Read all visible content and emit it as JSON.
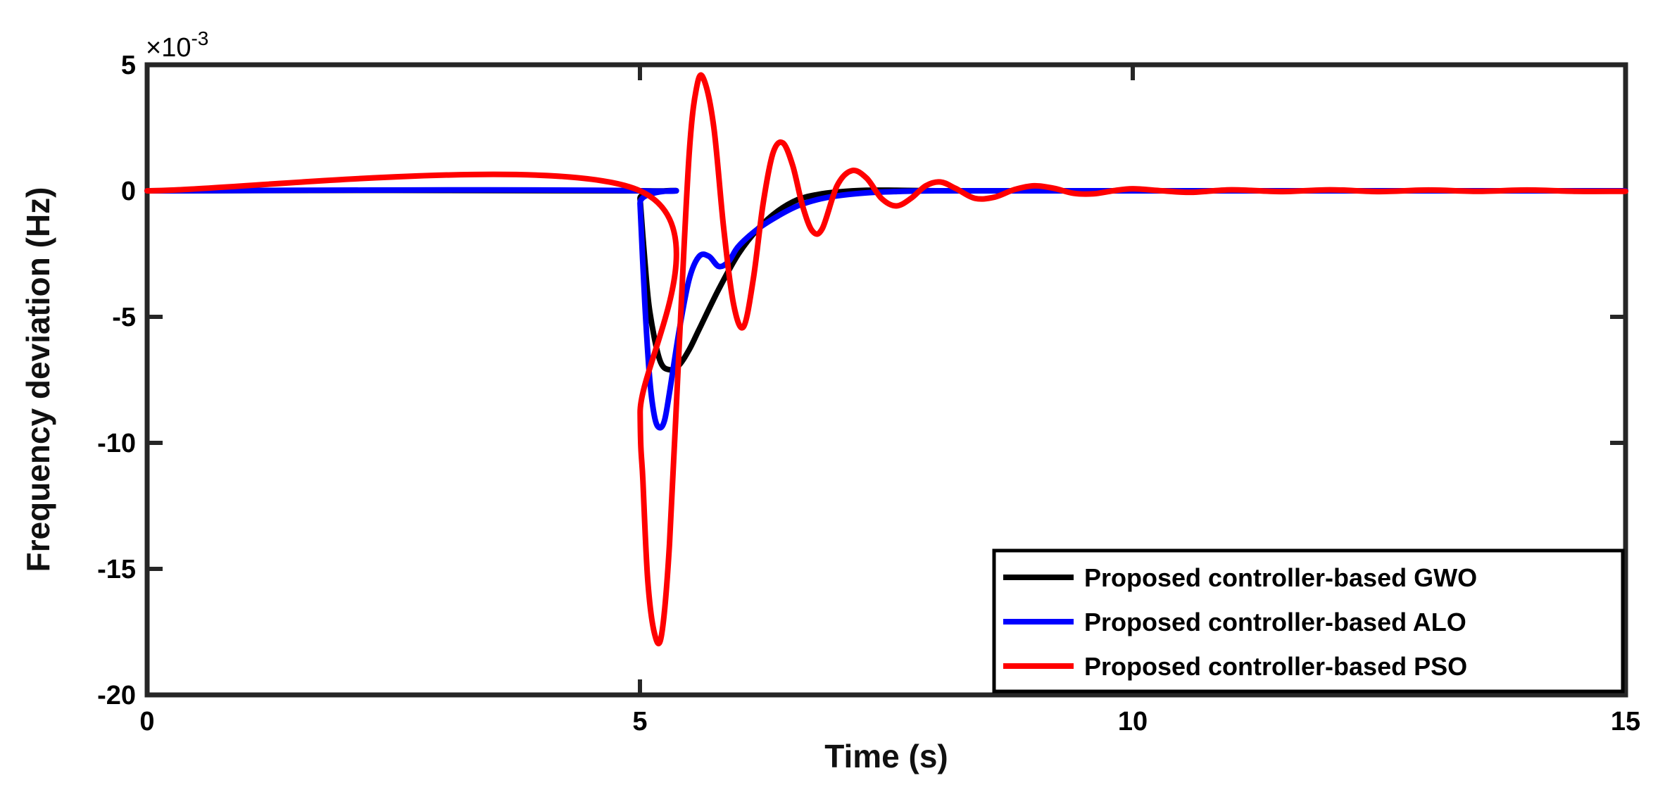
{
  "chart_data": {
    "type": "line",
    "title": "",
    "xlabel": "Time (s)",
    "ylabel": "Frequency deviation (Hz)",
    "xlim": [
      0,
      15
    ],
    "ylim": [
      -20,
      5
    ],
    "y_scale_exponent_label": "×10",
    "y_scale_exponent_power": "-3",
    "x_ticks": [
      0,
      5,
      10,
      15
    ],
    "x_tick_labels": [
      "0",
      "5",
      "10",
      "15"
    ],
    "y_ticks": [
      5,
      0,
      -5,
      -10,
      -15,
      -20
    ],
    "y_tick_labels": [
      "5",
      "0",
      "-5",
      "-10",
      "-15",
      "-20"
    ],
    "grid": false,
    "legend_position": "bottom-right",
    "series": [
      {
        "name": "Proposed controller-based GWO",
        "color": "#000000",
        "x": [
          0,
          5.0,
          5.001,
          5.05,
          5.1,
          5.2,
          5.3,
          5.4,
          5.5,
          5.6,
          5.8,
          6.0,
          6.2,
          6.4,
          6.6,
          6.8,
          7.0,
          7.3,
          7.6,
          8.0,
          9.0,
          10,
          15
        ],
        "y": [
          0,
          0,
          -0.3,
          -2.8,
          -4.8,
          -6.7,
          -7.1,
          -6.9,
          -6.3,
          -5.5,
          -3.9,
          -2.5,
          -1.5,
          -0.8,
          -0.35,
          -0.15,
          -0.05,
          0.02,
          0.02,
          0.0,
          0,
          0,
          0
        ]
      },
      {
        "name": "Proposed controller-based ALO",
        "color": "#0000ff",
        "x": [
          0,
          5.0,
          5.001,
          5.05,
          5.1,
          5.15,
          5.2,
          5.25,
          5.3,
          5.4,
          5.5,
          5.6,
          5.7,
          5.8,
          5.9,
          6.0,
          6.2,
          6.4,
          6.6,
          6.8,
          7.0,
          7.3,
          7.6,
          8.0,
          9.0,
          10,
          15
        ],
        "y": [
          0,
          0,
          -0.5,
          -4.5,
          -7.5,
          -9.0,
          -9.4,
          -9.1,
          -8.0,
          -5.5,
          -3.5,
          -2.6,
          -2.6,
          -3.0,
          -2.8,
          -2.2,
          -1.5,
          -1.0,
          -0.6,
          -0.35,
          -0.2,
          -0.08,
          -0.03,
          0,
          0,
          0,
          0
        ]
      },
      {
        "name": "Proposed controller-based PSO",
        "color": "#ff0000",
        "x": [
          0,
          5.0,
          5.002,
          5.03,
          5.08,
          5.15,
          5.22,
          5.3,
          5.4,
          5.5,
          5.58,
          5.65,
          5.75,
          5.85,
          5.95,
          6.05,
          6.15,
          6.25,
          6.35,
          6.45,
          6.55,
          6.65,
          6.75,
          6.85,
          7.0,
          7.15,
          7.3,
          7.45,
          7.6,
          7.75,
          7.9,
          8.05,
          8.2,
          8.4,
          8.6,
          8.8,
          9.0,
          9.2,
          9.4,
          9.6,
          9.8,
          10.0,
          10.3,
          10.6,
          11.0,
          11.5,
          12.0,
          12.5,
          13.0,
          13.5,
          14.0,
          14.5,
          15.0
        ],
        "y": [
          0,
          0,
          -8.8,
          -11.5,
          -15.5,
          -17.6,
          -17.6,
          -14.0,
          -6.0,
          1.5,
          4.2,
          4.4,
          2.5,
          -1.5,
          -4.5,
          -5.4,
          -3.5,
          -0.5,
          1.5,
          1.9,
          1.0,
          -0.6,
          -1.6,
          -1.5,
          0.2,
          0.8,
          0.5,
          -0.3,
          -0.6,
          -0.3,
          0.2,
          0.35,
          0.1,
          -0.3,
          -0.25,
          0.05,
          0.2,
          0.1,
          -0.1,
          -0.12,
          0.0,
          0.08,
          0.0,
          -0.06,
          0.04,
          -0.03,
          0.04,
          -0.03,
          0.03,
          -0.02,
          0.03,
          -0.02,
          -0.02
        ]
      }
    ]
  }
}
